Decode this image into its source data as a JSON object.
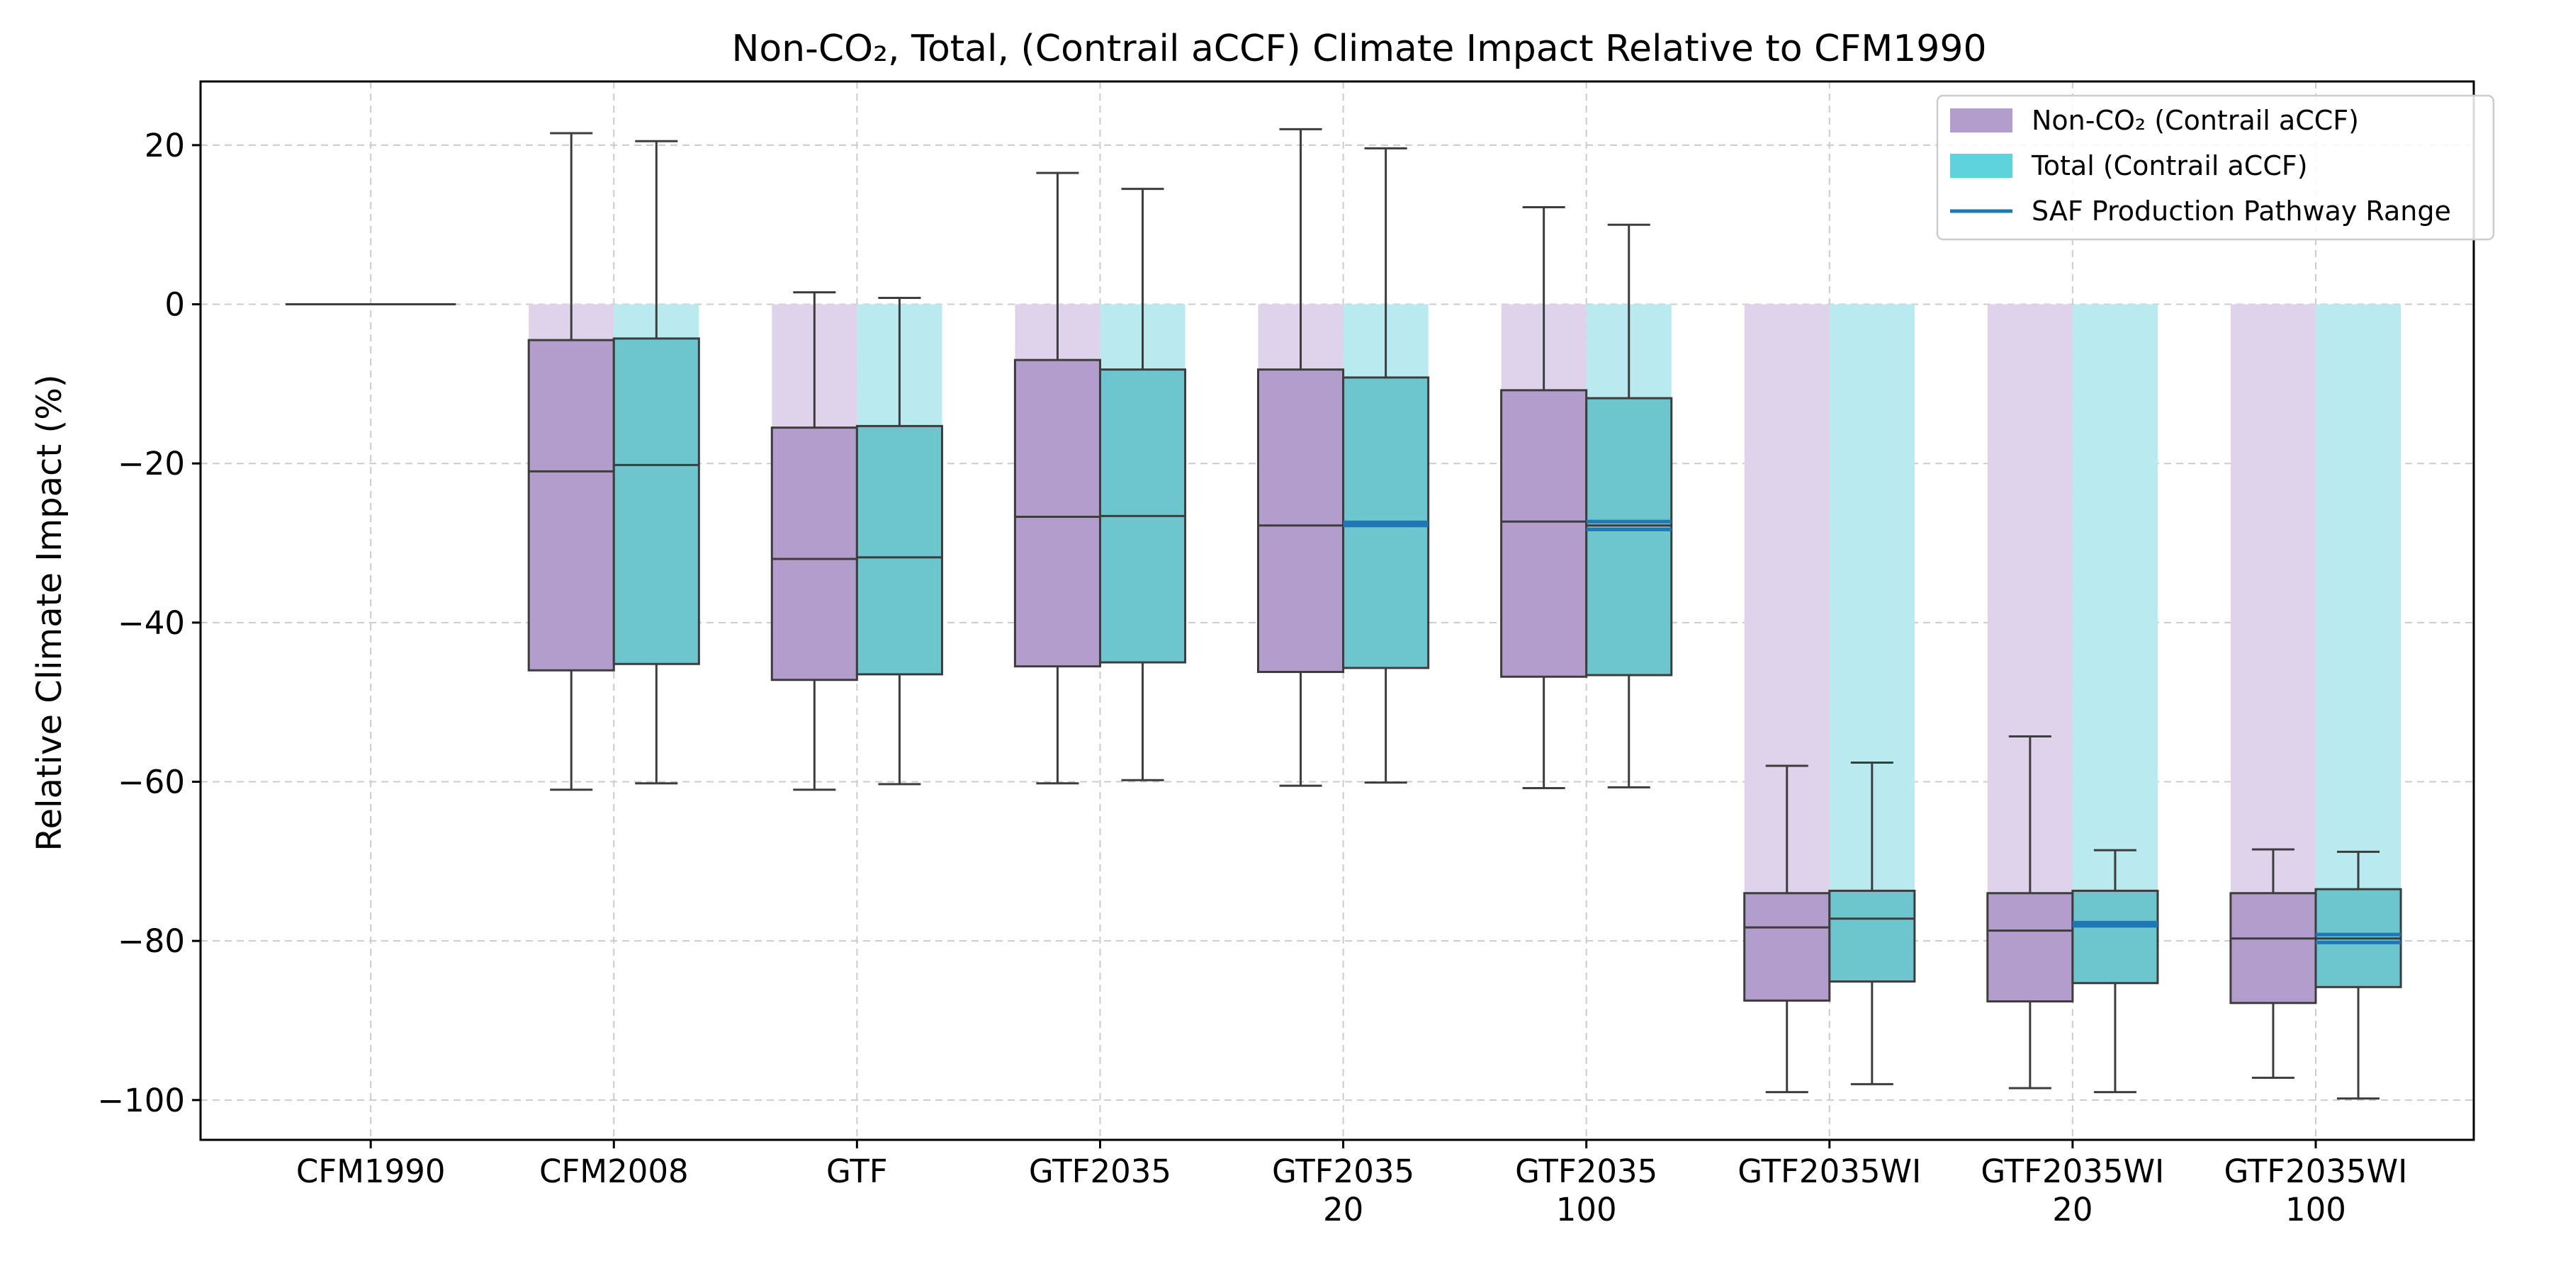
{
  "chart_data": {
    "type": "boxplot",
    "title": "Non-CO₂, Total, (Contrail aCCF) Climate Impact Relative to CFM1990",
    "xlabel": "",
    "ylabel": "Relative Climate Impact (%)",
    "ylim": [
      -105,
      28
    ],
    "yticks": [
      20,
      0,
      -20,
      -40,
      -60,
      -80,
      -100
    ],
    "ytick_labels": [
      "20",
      "0",
      "−20",
      "−40",
      "−60",
      "−80",
      "−100"
    ],
    "grid": true,
    "legend_position": "top-right",
    "categories": [
      [
        "CFM1990"
      ],
      [
        "CFM2008"
      ],
      [
        "GTF"
      ],
      [
        "GTF2035"
      ],
      [
        "GTF2035",
        "20"
      ],
      [
        "GTF2035",
        "100"
      ],
      [
        "GTF2035WI"
      ],
      [
        "GTF2035WI",
        "20"
      ],
      [
        "GTF2035WI",
        "100"
      ]
    ],
    "colors": {
      "noco2_box": "#b39dcc",
      "noco2_bar": "#dfd3ec",
      "total_box": "#6dc5ce",
      "total_bar": "#b9eaef",
      "saf_line": "#1f77b4",
      "box_edge": "#3d3d3d"
    },
    "legend": [
      {
        "label": "Non-CO₂ (Contrail aCCF)",
        "kind": "patch",
        "color": "#b39dcc"
      },
      {
        "label": "Total (Contrail aCCF)",
        "kind": "patch",
        "color": "#5fd3dc"
      },
      {
        "label": "SAF Production Pathway Range",
        "kind": "line",
        "color": "#1f77b4"
      }
    ],
    "series": [
      {
        "name": "Non-CO₂ (Contrail aCCF)",
        "bar_values": [
          0,
          -4.5,
          -15.5,
          -7,
          -8.2,
          -10.8,
          -74,
          -74,
          -74
        ],
        "boxes": [
          {
            "whislo": 0,
            "q1": 0,
            "med": 0,
            "q3": 0,
            "whishi": 0
          },
          {
            "whislo": -61,
            "q1": -46,
            "med": -21,
            "q3": -4.5,
            "whishi": 21.5
          },
          {
            "whislo": -61,
            "q1": -47.2,
            "med": -32,
            "q3": -15.5,
            "whishi": 1.5
          },
          {
            "whislo": -60.2,
            "q1": -45.5,
            "med": -26.7,
            "q3": -7,
            "whishi": 16.5
          },
          {
            "whislo": -60.5,
            "q1": -46.2,
            "med": -27.8,
            "q3": -8.2,
            "whishi": 22
          },
          {
            "whislo": -60.8,
            "q1": -46.8,
            "med": -27.3,
            "q3": -10.8,
            "whishi": 12.2
          },
          {
            "whislo": -99,
            "q1": -87.5,
            "med": -78.3,
            "q3": -74,
            "whishi": -58
          },
          {
            "whislo": -98.5,
            "q1": -87.6,
            "med": -78.7,
            "q3": -74,
            "whishi": -54.3
          },
          {
            "whislo": -97.2,
            "q1": -87.8,
            "med": -79.7,
            "q3": -74,
            "whishi": -68.5
          }
        ]
      },
      {
        "name": "Total (Contrail aCCF)",
        "bar_values": [
          0,
          -4.3,
          -15.3,
          -8.2,
          -9.2,
          -11.8,
          -73.7,
          -73.7,
          -73.5
        ],
        "boxes": [
          {
            "whislo": 0,
            "q1": 0,
            "med": 0,
            "q3": 0,
            "whishi": 0
          },
          {
            "whislo": -60.2,
            "q1": -45.2,
            "med": -20.2,
            "q3": -4.3,
            "whishi": 20.5
          },
          {
            "whislo": -60.3,
            "q1": -46.5,
            "med": -31.8,
            "q3": -15.3,
            "whishi": 0.8
          },
          {
            "whislo": -59.8,
            "q1": -45,
            "med": -26.6,
            "q3": -8.2,
            "whishi": 14.5
          },
          {
            "whislo": -60.1,
            "q1": -45.7,
            "med": -27.8,
            "q3": -9.2,
            "whishi": 19.6
          },
          {
            "whislo": -60.7,
            "q1": -46.6,
            "med": -27.8,
            "q3": -11.8,
            "whishi": 10
          },
          {
            "whislo": -98,
            "q1": -85.1,
            "med": -77.2,
            "q3": -73.7,
            "whishi": -57.6
          },
          {
            "whislo": -99,
            "q1": -85.3,
            "med": -77.9,
            "q3": -73.7,
            "whishi": -68.6
          },
          {
            "whislo": -99.8,
            "q1": -85.8,
            "med": -79.7,
            "q3": -73.5,
            "whishi": -68.8
          }
        ]
      }
    ],
    "saf_range": [
      null,
      null,
      null,
      null,
      {
        "low": -27.8,
        "high": -27.4
      },
      {
        "low": -28.3,
        "high": -27.3
      },
      null,
      {
        "low": -78.1,
        "high": -77.7
      },
      {
        "low": -80.2,
        "high": -79.2
      }
    ]
  }
}
